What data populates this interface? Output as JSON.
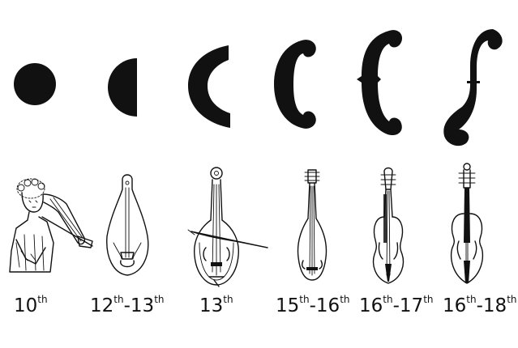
{
  "stages": [
    {
      "id": "s1",
      "soundhole": "circle",
      "century": "10",
      "suffix": "th",
      "instrument": "figure-playing-fiddle"
    },
    {
      "id": "s2",
      "soundhole": "half-circle",
      "century": "12",
      "suffix": "th",
      "dash": "-",
      "century2": "13",
      "suffix2": "th",
      "instrument": "narrow-fiddle"
    },
    {
      "id": "s3",
      "soundhole": "crescent",
      "century": "13",
      "suffix": "th",
      "instrument": "lute-fiddle-with-bow"
    },
    {
      "id": "s4",
      "soundhole": "c-hole",
      "century": "15",
      "suffix": "th",
      "dash": "-",
      "century2": "16",
      "suffix2": "th",
      "instrument": "long-fiddle"
    },
    {
      "id": "s5",
      "soundhole": "notched-c-hole",
      "century": "16",
      "suffix": "th",
      "dash": "-",
      "century2": "17",
      "suffix2": "th",
      "instrument": "viol"
    },
    {
      "id": "s6",
      "soundhole": "f-hole",
      "century": "16",
      "suffix": "th",
      "dash": "-",
      "century2": "18",
      "suffix2": "th",
      "instrument": "violin"
    }
  ],
  "colors": {
    "ink": "#111111",
    "background": "#ffffff"
  }
}
